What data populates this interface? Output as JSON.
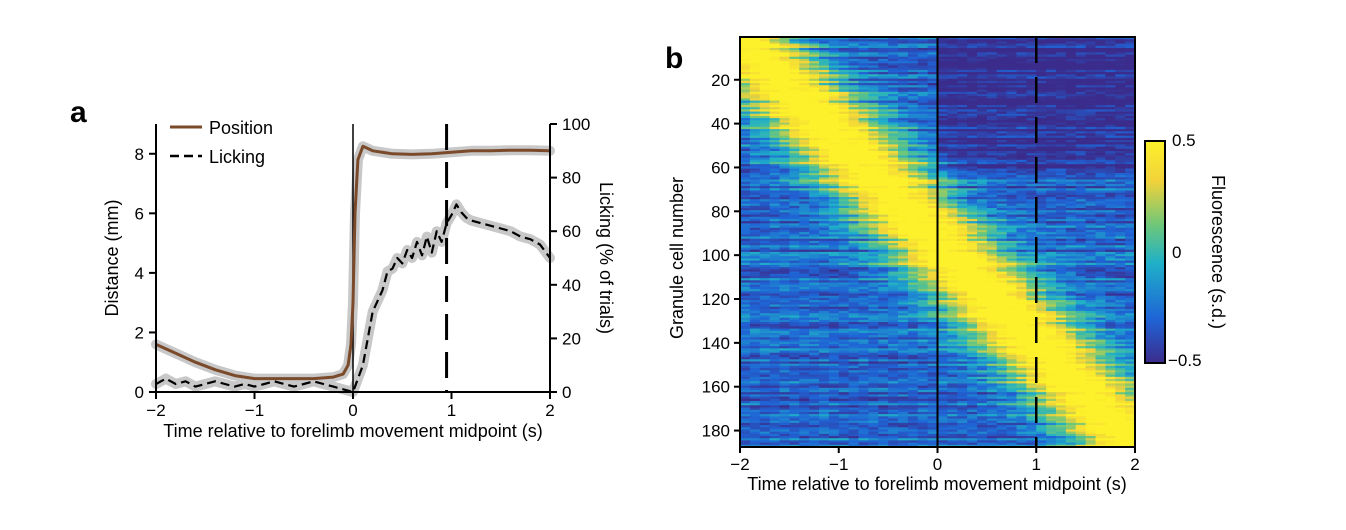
{
  "chart_data": [
    {
      "type": "line",
      "panel_label": "a",
      "xlabel": "Time relative to forelimb movement midpoint (s)",
      "ylabel": "Distance (mm)",
      "y2label": "Licking (% of trials)",
      "xlim": [
        -2,
        2
      ],
      "ylim": [
        0,
        9
      ],
      "y2lim": [
        0,
        100
      ],
      "xticks": [
        "−2",
        "−1",
        "0",
        "1",
        "2"
      ],
      "yticks": [
        "0",
        "2",
        "4",
        "6",
        "8"
      ],
      "y2ticks": [
        "0",
        "20",
        "40",
        "60",
        "80",
        "100"
      ],
      "legend": {
        "position": "top-left",
        "entries": [
          "Position",
          "Licking"
        ]
      },
      "colors": {
        "position": "#7a4a2a",
        "licking": "#000000",
        "sem": "#c8c8c8"
      },
      "vertical_lines": [
        {
          "x": 0,
          "style": "solid"
        },
        {
          "x": 0.95,
          "style": "dashed"
        }
      ],
      "series": [
        {
          "name": "Position",
          "axis": "left",
          "x": [
            -2,
            -1.8,
            -1.6,
            -1.4,
            -1.2,
            -1.0,
            -0.8,
            -0.6,
            -0.4,
            -0.2,
            -0.1,
            -0.05,
            -0.02,
            0,
            0.02,
            0.05,
            0.1,
            0.2,
            0.4,
            0.6,
            0.8,
            1.0,
            1.2,
            1.4,
            1.6,
            1.8,
            2.0
          ],
          "values": [
            1.6,
            1.3,
            1.0,
            0.75,
            0.55,
            0.45,
            0.45,
            0.45,
            0.45,
            0.5,
            0.6,
            0.9,
            1.6,
            3.0,
            6.0,
            7.8,
            8.25,
            8.1,
            8.0,
            7.98,
            8.0,
            8.05,
            8.1,
            8.1,
            8.12,
            8.12,
            8.1
          ]
        },
        {
          "name": "Licking",
          "axis": "right",
          "x": [
            -2,
            -1.9,
            -1.8,
            -1.7,
            -1.6,
            -1.5,
            -1.4,
            -1.3,
            -1.2,
            -1.1,
            -1.0,
            -0.9,
            -0.8,
            -0.7,
            -0.6,
            -0.5,
            -0.4,
            -0.3,
            -0.2,
            -0.1,
            0,
            0.1,
            0.15,
            0.2,
            0.3,
            0.35,
            0.4,
            0.45,
            0.5,
            0.55,
            0.6,
            0.65,
            0.7,
            0.75,
            0.8,
            0.85,
            0.9,
            0.95,
            1.0,
            1.05,
            1.1,
            1.15,
            1.2,
            1.3,
            1.4,
            1.5,
            1.6,
            1.7,
            1.8,
            1.9,
            2.0
          ],
          "values": [
            3,
            5,
            3,
            4,
            2,
            3,
            4,
            3,
            2,
            3,
            2,
            3,
            4,
            3,
            2,
            3,
            4,
            3,
            2,
            1,
            0,
            10,
            20,
            30,
            38,
            45,
            46,
            50,
            48,
            53,
            50,
            56,
            51,
            58,
            52,
            60,
            56,
            63,
            66,
            70,
            67,
            65,
            64,
            63,
            62,
            61,
            60,
            58,
            57,
            55,
            50
          ]
        }
      ]
    },
    {
      "type": "heatmap",
      "panel_label": "b",
      "xlabel": "Time relative to forelimb movement midpoint (s)",
      "ylabel": "Granule cell number",
      "colorbar_label": "Fluorescence (s.d.)",
      "xlim": [
        -2,
        2
      ],
      "ylim": [
        1,
        187
      ],
      "xticks": [
        "−2",
        "−1",
        "0",
        "1",
        "2"
      ],
      "yticks": [
        "20",
        "40",
        "60",
        "80",
        "100",
        "120",
        "140",
        "160",
        "180"
      ],
      "colorbar_ticks": [
        "0.5",
        "0",
        "−0.5"
      ],
      "colorbar_range": [
        -0.5,
        0.5
      ],
      "colormap": [
        "#3b2c8c",
        "#1f64d6",
        "#1fb0c8",
        "#6dc77a",
        "#f2d23a",
        "#fcf12a"
      ],
      "n_cells": 187,
      "description_of_pattern": "cells sorted by time of peak fluorescence; peak shifts from -2 s (top rows) to 2 s (bottom rows)",
      "peak_time_first_cell": -2,
      "peak_time_last_cell": 2,
      "vertical_lines": [
        {
          "x": 0,
          "style": "solid"
        },
        {
          "x": 1,
          "style": "dashed"
        }
      ]
    }
  ]
}
